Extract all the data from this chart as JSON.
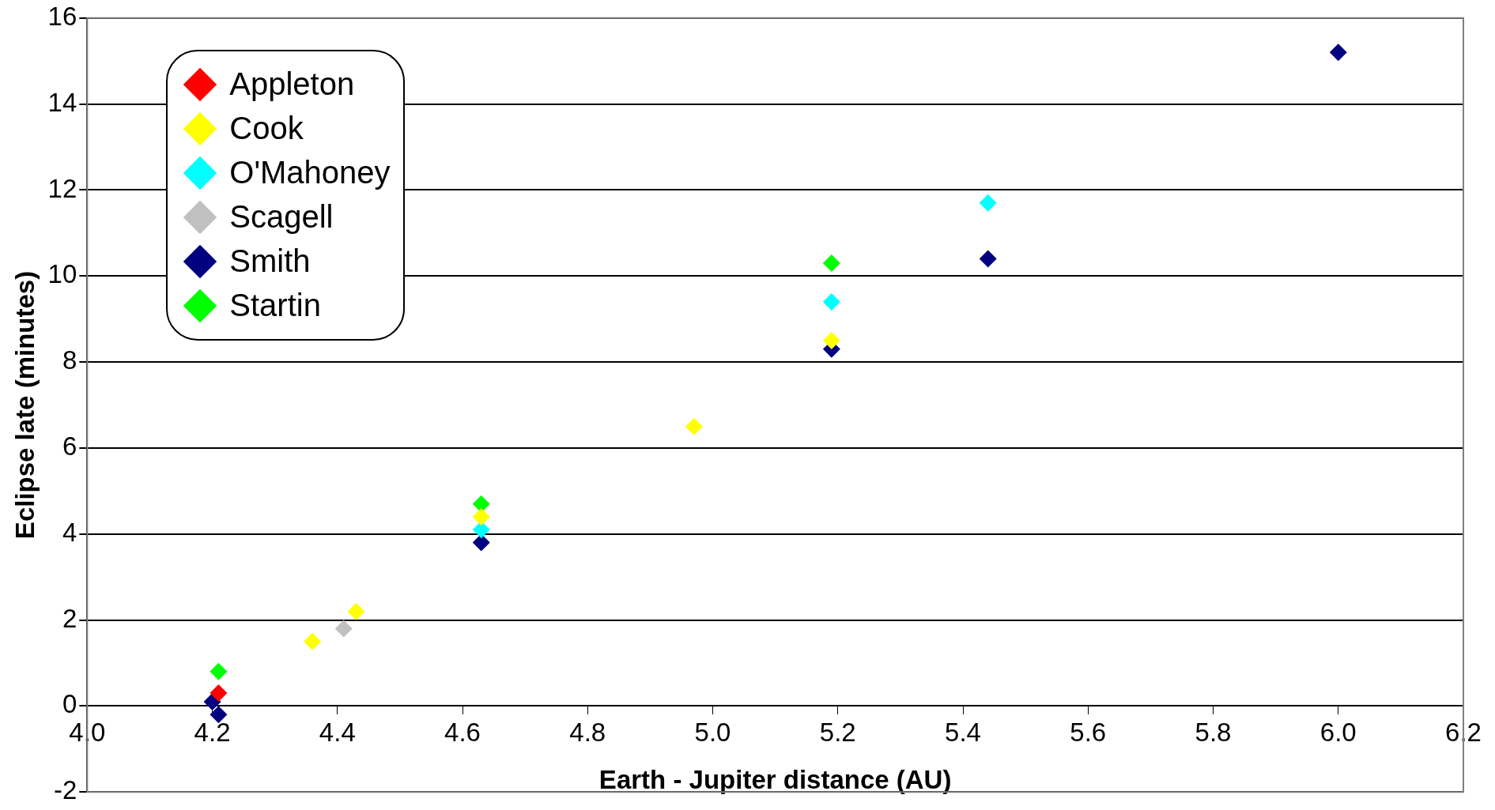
{
  "chart_data": {
    "type": "scatter",
    "xlabel": "Earth - Jupiter distance (AU)",
    "ylabel": "Eclipse late (minutes)",
    "xlim": [
      4.0,
      6.2
    ],
    "xticks": [
      {
        "value": 4.0,
        "label": "4.0"
      },
      {
        "value": 4.2,
        "label": "4.2"
      },
      {
        "value": 4.4,
        "label": "4.4"
      },
      {
        "value": 4.6,
        "label": "4.6"
      },
      {
        "value": 4.8,
        "label": "4.8"
      },
      {
        "value": 5.0,
        "label": "5.0"
      },
      {
        "value": 5.2,
        "label": "5.2"
      },
      {
        "value": 5.4,
        "label": "5.4"
      },
      {
        "value": 5.6,
        "label": "5.6"
      },
      {
        "value": 5.8,
        "label": "5.8"
      },
      {
        "value": 6.0,
        "label": "6.0"
      },
      {
        "value": 6.2,
        "label": "6.2"
      }
    ],
    "ylim": [
      -2,
      16
    ],
    "yticks": [
      -2,
      0,
      2,
      4,
      6,
      8,
      10,
      12,
      14,
      16
    ],
    "grid": "y",
    "legend": "top left",
    "marker": "diamond",
    "series": [
      {
        "name": "Appleton",
        "color": "#ff0000",
        "x": [
          4.21
        ],
        "values": [
          0.3
        ]
      },
      {
        "name": "Cook",
        "color": "#ffff00",
        "x": [
          4.36,
          4.43,
          4.63,
          4.97,
          5.19
        ],
        "values": [
          1.5,
          2.2,
          4.4,
          6.5,
          8.5
        ]
      },
      {
        "name": "O'Mahoney",
        "color": "#00ffff",
        "x": [
          4.63,
          5.19,
          5.44
        ],
        "values": [
          4.1,
          9.4,
          11.7
        ]
      },
      {
        "name": "Scagell",
        "color": "#c0c0c0",
        "x": [
          4.41
        ],
        "values": [
          1.8
        ]
      },
      {
        "name": "Smith",
        "color": "#000080",
        "x": [
          4.2,
          4.21,
          4.63,
          5.19,
          5.44,
          6.0
        ],
        "values": [
          0.1,
          -0.2,
          3.8,
          8.3,
          10.4,
          15.2
        ]
      },
      {
        "name": "Startin",
        "color": "#00ff00",
        "x": [
          4.21,
          4.63,
          5.19
        ],
        "values": [
          0.8,
          4.7,
          10.3
        ]
      }
    ]
  }
}
